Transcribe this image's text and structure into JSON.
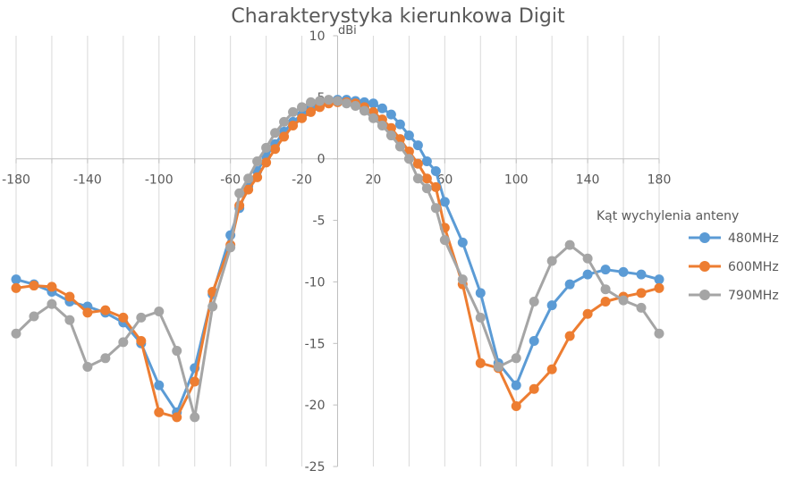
{
  "chart_data": {
    "type": "line",
    "title": "Charakterystyka kierunkowa Digit",
    "xlabel": "",
    "ylabel": "dBi",
    "xlim": [
      -180,
      180
    ],
    "ylim": [
      -25,
      10
    ],
    "grid": true,
    "legend_title": "Kąt  wychylenia anteny",
    "legend_position": "right",
    "x_ticks": [
      -180,
      -140,
      -100,
      -60,
      -20,
      20,
      60,
      100,
      140,
      180
    ],
    "y_ticks": [
      10,
      5,
      0,
      -5,
      -10,
      -15,
      -20,
      -25
    ],
    "series": [
      {
        "name": "480MHz",
        "color": "#5b9bd5",
        "points": [
          [
            -180,
            -9.8
          ],
          [
            -170,
            -10.2
          ],
          [
            -160,
            -10.8
          ],
          [
            -150,
            -11.6
          ],
          [
            -140,
            -12.0
          ],
          [
            -130,
            -12.5
          ],
          [
            -120,
            -13.3
          ],
          [
            -110,
            -15.0
          ],
          [
            -100,
            -18.4
          ],
          [
            -90,
            -20.6
          ],
          [
            -80,
            -17.0
          ],
          [
            -70,
            -11.0
          ],
          [
            -60,
            -6.2
          ],
          [
            -55,
            -4.0
          ],
          [
            -50,
            -2.2
          ],
          [
            -45,
            -1.0
          ],
          [
            -40,
            0.2
          ],
          [
            -35,
            1.2
          ],
          [
            -30,
            2.2
          ],
          [
            -25,
            3.0
          ],
          [
            -20,
            3.6
          ],
          [
            -15,
            4.1
          ],
          [
            -10,
            4.5
          ],
          [
            -5,
            4.7
          ],
          [
            0,
            4.8
          ],
          [
            5,
            4.8
          ],
          [
            10,
            4.7
          ],
          [
            15,
            4.6
          ],
          [
            20,
            4.5
          ],
          [
            25,
            4.1
          ],
          [
            30,
            3.6
          ],
          [
            35,
            2.8
          ],
          [
            40,
            1.9
          ],
          [
            45,
            1.1
          ],
          [
            50,
            -0.2
          ],
          [
            55,
            -1.0
          ],
          [
            60,
            -3.5
          ],
          [
            70,
            -6.8
          ],
          [
            80,
            -10.9
          ],
          [
            90,
            -16.6
          ],
          [
            100,
            -18.4
          ],
          [
            110,
            -14.8
          ],
          [
            120,
            -11.9
          ],
          [
            130,
            -10.2
          ],
          [
            140,
            -9.4
          ],
          [
            150,
            -9.0
          ],
          [
            160,
            -9.2
          ],
          [
            170,
            -9.4
          ],
          [
            180,
            -9.8
          ]
        ]
      },
      {
        "name": "600MHz",
        "color": "#ed7d31",
        "points": [
          [
            -180,
            -10.5
          ],
          [
            -170,
            -10.3
          ],
          [
            -160,
            -10.4
          ],
          [
            -150,
            -11.2
          ],
          [
            -140,
            -12.5
          ],
          [
            -130,
            -12.3
          ],
          [
            -120,
            -12.9
          ],
          [
            -110,
            -14.8
          ],
          [
            -100,
            -20.6
          ],
          [
            -90,
            -21.0
          ],
          [
            -80,
            -18.1
          ],
          [
            -70,
            -10.8
          ],
          [
            -60,
            -7.0
          ],
          [
            -55,
            -3.8
          ],
          [
            -50,
            -2.5
          ],
          [
            -45,
            -1.5
          ],
          [
            -40,
            -0.3
          ],
          [
            -35,
            0.8
          ],
          [
            -30,
            1.8
          ],
          [
            -25,
            2.7
          ],
          [
            -20,
            3.3
          ],
          [
            -15,
            3.8
          ],
          [
            -10,
            4.2
          ],
          [
            -5,
            4.5
          ],
          [
            0,
            4.6
          ],
          [
            5,
            4.6
          ],
          [
            10,
            4.5
          ],
          [
            15,
            4.2
          ],
          [
            20,
            3.8
          ],
          [
            25,
            3.2
          ],
          [
            30,
            2.5
          ],
          [
            35,
            1.6
          ],
          [
            40,
            0.6
          ],
          [
            45,
            -0.4
          ],
          [
            50,
            -1.6
          ],
          [
            55,
            -2.3
          ],
          [
            60,
            -5.6
          ],
          [
            70,
            -10.2
          ],
          [
            80,
            -16.6
          ],
          [
            90,
            -17.0
          ],
          [
            100,
            -20.1
          ],
          [
            110,
            -18.7
          ],
          [
            120,
            -17.1
          ],
          [
            130,
            -14.4
          ],
          [
            140,
            -12.6
          ],
          [
            150,
            -11.6
          ],
          [
            160,
            -11.2
          ],
          [
            170,
            -10.9
          ],
          [
            180,
            -10.5
          ]
        ]
      },
      {
        "name": "790MHz",
        "color": "#a5a5a5",
        "points": [
          [
            -180,
            -14.2
          ],
          [
            -170,
            -12.8
          ],
          [
            -160,
            -11.8
          ],
          [
            -150,
            -13.1
          ],
          [
            -140,
            -16.9
          ],
          [
            -130,
            -16.2
          ],
          [
            -120,
            -14.9
          ],
          [
            -110,
            -12.9
          ],
          [
            -100,
            -12.4
          ],
          [
            -90,
            -15.6
          ],
          [
            -80,
            -21.0
          ],
          [
            -70,
            -12.0
          ],
          [
            -60,
            -7.2
          ],
          [
            -55,
            -2.8
          ],
          [
            -50,
            -1.6
          ],
          [
            -45,
            -0.2
          ],
          [
            -40,
            0.9
          ],
          [
            -35,
            2.1
          ],
          [
            -30,
            3.0
          ],
          [
            -25,
            3.8
          ],
          [
            -20,
            4.2
          ],
          [
            -15,
            4.6
          ],
          [
            -10,
            4.7
          ],
          [
            -5,
            4.8
          ],
          [
            0,
            4.7
          ],
          [
            5,
            4.5
          ],
          [
            10,
            4.3
          ],
          [
            15,
            3.9
          ],
          [
            20,
            3.3
          ],
          [
            25,
            2.7
          ],
          [
            30,
            1.9
          ],
          [
            35,
            1.0
          ],
          [
            40,
            0.0
          ],
          [
            45,
            -1.6
          ],
          [
            50,
            -2.4
          ],
          [
            55,
            -4.0
          ],
          [
            60,
            -6.6
          ],
          [
            70,
            -9.8
          ],
          [
            80,
            -12.9
          ],
          [
            90,
            -16.9
          ],
          [
            100,
            -16.2
          ],
          [
            110,
            -11.6
          ],
          [
            120,
            -8.3
          ],
          [
            130,
            -7.0
          ],
          [
            140,
            -8.1
          ],
          [
            150,
            -10.6
          ],
          [
            160,
            -11.5
          ],
          [
            170,
            -12.1
          ],
          [
            180,
            -14.2
          ]
        ]
      }
    ]
  }
}
